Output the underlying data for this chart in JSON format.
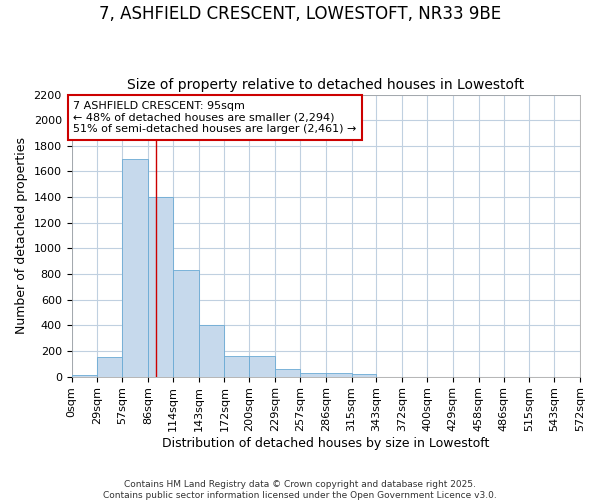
{
  "title_line1": "7, ASHFIELD CRESCENT, LOWESTOFT, NR33 9BE",
  "title_line2": "Size of property relative to detached houses in Lowestoft",
  "xlabel": "Distribution of detached houses by size in Lowestoft",
  "ylabel": "Number of detached properties",
  "bin_edges": [
    0,
    29,
    57,
    86,
    114,
    143,
    172,
    200,
    229,
    257,
    286,
    315,
    343,
    372,
    400,
    429,
    458,
    486,
    515,
    543,
    572
  ],
  "bar_heights": [
    10,
    150,
    1700,
    1400,
    830,
    400,
    160,
    160,
    60,
    30,
    25,
    20,
    0,
    0,
    0,
    0,
    0,
    0,
    0,
    0
  ],
  "bar_color": "#c6d9ec",
  "bar_edge_color": "#6aaad4",
  "property_size": 95,
  "vline_color": "#cc0000",
  "ylim": [
    0,
    2200
  ],
  "yticks": [
    0,
    200,
    400,
    600,
    800,
    1000,
    1200,
    1400,
    1600,
    1800,
    2000,
    2200
  ],
  "annotation_title": "7 ASHFIELD CRESCENT: 95sqm",
  "annotation_line2": "← 48% of detached houses are smaller (2,294)",
  "annotation_line3": "51% of semi-detached houses are larger (2,461) →",
  "annotation_box_color": "#ffffff",
  "annotation_border_color": "#cc0000",
  "bg_color": "#ffffff",
  "plot_bg_color": "#ffffff",
  "grid_color": "#c0d0e0",
  "footer_line1": "Contains HM Land Registry data © Crown copyright and database right 2025.",
  "footer_line2": "Contains public sector information licensed under the Open Government Licence v3.0.",
  "title_fontsize": 12,
  "subtitle_fontsize": 10,
  "axis_label_fontsize": 9,
  "tick_fontsize": 8,
  "annotation_fontsize": 8
}
